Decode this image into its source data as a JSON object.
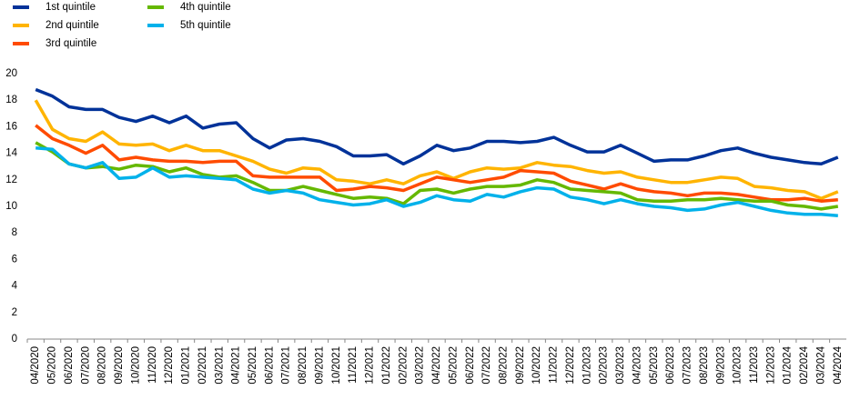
{
  "chart_data": {
    "type": "line",
    "categories": [
      "04/2020",
      "05/2020",
      "06/2020",
      "07/2020",
      "08/2020",
      "09/2020",
      "10/2020",
      "11/2020",
      "12/2020",
      "01/2021",
      "02/2021",
      "03/2021",
      "04/2021",
      "05/2021",
      "06/2021",
      "07/2021",
      "08/2021",
      "09/2021",
      "10/2021",
      "11/2021",
      "12/2021",
      "01/2022",
      "02/2022",
      "03/2022",
      "04/2022",
      "05/2022",
      "06/2022",
      "07/2022",
      "08/2022",
      "09/2022",
      "10/2022",
      "11/2022",
      "12/2022",
      "01/2023",
      "02/2023",
      "03/2023",
      "04/2023",
      "05/2023",
      "06/2023",
      "07/2023",
      "08/2023",
      "09/2023",
      "10/2023",
      "11/2023",
      "12/2023",
      "01/2024",
      "02/2024",
      "03/2024",
      "04/2024"
    ],
    "series": [
      {
        "name": "1st quintile",
        "color": "#003299",
        "values": [
          18.8,
          18.3,
          17.5,
          17.3,
          17.3,
          16.7,
          16.4,
          16.8,
          16.3,
          16.8,
          15.9,
          16.2,
          16.3,
          15.1,
          14.4,
          15.0,
          15.1,
          14.9,
          14.5,
          13.8,
          13.8,
          13.9,
          13.2,
          13.8,
          14.6,
          14.2,
          14.4,
          14.9,
          14.9,
          14.8,
          14.9,
          15.2,
          14.6,
          14.1,
          14.1,
          14.6,
          14.0,
          13.4,
          13.5,
          13.5,
          13.8,
          14.2,
          14.4,
          14.0,
          13.7,
          13.5,
          13.3,
          13.2,
          13.7
        ]
      },
      {
        "name": "2nd quintile",
        "color": "#ffb400",
        "values": [
          18.0,
          15.8,
          15.1,
          14.9,
          15.6,
          14.7,
          14.6,
          14.7,
          14.2,
          14.6,
          14.2,
          14.2,
          13.8,
          13.4,
          12.8,
          12.5,
          12.9,
          12.8,
          12.0,
          11.9,
          11.7,
          12.0,
          11.7,
          12.3,
          12.6,
          12.1,
          12.6,
          12.9,
          12.8,
          12.9,
          13.3,
          13.1,
          13.0,
          12.7,
          12.5,
          12.6,
          12.2,
          12.0,
          11.8,
          11.8,
          12.0,
          12.2,
          12.1,
          11.5,
          11.4,
          11.2,
          11.1,
          10.6,
          11.1
        ]
      },
      {
        "name": "3rd quintile",
        "color": "#ff4b00",
        "values": [
          16.1,
          15.1,
          14.6,
          14.0,
          14.6,
          13.5,
          13.7,
          13.5,
          13.4,
          13.4,
          13.3,
          13.4,
          13.4,
          12.3,
          12.2,
          12.2,
          12.2,
          12.2,
          11.2,
          11.3,
          11.5,
          11.4,
          11.2,
          11.7,
          12.2,
          12.0,
          11.8,
          12.0,
          12.2,
          12.7,
          12.6,
          12.5,
          11.9,
          11.6,
          11.3,
          11.7,
          11.3,
          11.1,
          11.0,
          10.8,
          11.0,
          11.0,
          10.9,
          10.7,
          10.5,
          10.5,
          10.6,
          10.4,
          10.5
        ]
      },
      {
        "name": "4th quintile",
        "color": "#65b800",
        "values": [
          14.8,
          14.1,
          13.2,
          12.9,
          13.0,
          12.8,
          13.1,
          13.0,
          12.6,
          12.9,
          12.4,
          12.2,
          12.3,
          11.8,
          11.2,
          11.2,
          11.5,
          11.2,
          10.9,
          10.6,
          10.7,
          10.6,
          10.2,
          11.2,
          11.3,
          11.0,
          11.3,
          11.5,
          11.5,
          11.6,
          12.0,
          11.8,
          11.3,
          11.2,
          11.1,
          11.0,
          10.5,
          10.4,
          10.4,
          10.5,
          10.5,
          10.6,
          10.5,
          10.4,
          10.4,
          10.1,
          10.0,
          9.8,
          10.0
        ]
      },
      {
        "name": "5th quintile",
        "color": "#00b1ea",
        "values": [
          14.4,
          14.3,
          13.2,
          12.9,
          13.3,
          12.1,
          12.2,
          12.9,
          12.2,
          12.3,
          12.2,
          12.1,
          12.0,
          11.3,
          11.0,
          11.2,
          11.0,
          10.5,
          10.3,
          10.1,
          10.2,
          10.5,
          10.0,
          10.3,
          10.8,
          10.5,
          10.4,
          10.9,
          10.7,
          11.1,
          11.4,
          11.3,
          10.7,
          10.5,
          10.2,
          10.5,
          10.2,
          10.0,
          9.9,
          9.7,
          9.8,
          10.1,
          10.3,
          10.0,
          9.7,
          9.5,
          9.4,
          9.4,
          9.3
        ]
      }
    ],
    "ylim": [
      0,
      20
    ],
    "yticks": [
      0,
      2,
      4,
      6,
      8,
      10,
      12,
      14,
      16,
      18,
      20
    ],
    "grid": false,
    "legend": "top-left"
  }
}
